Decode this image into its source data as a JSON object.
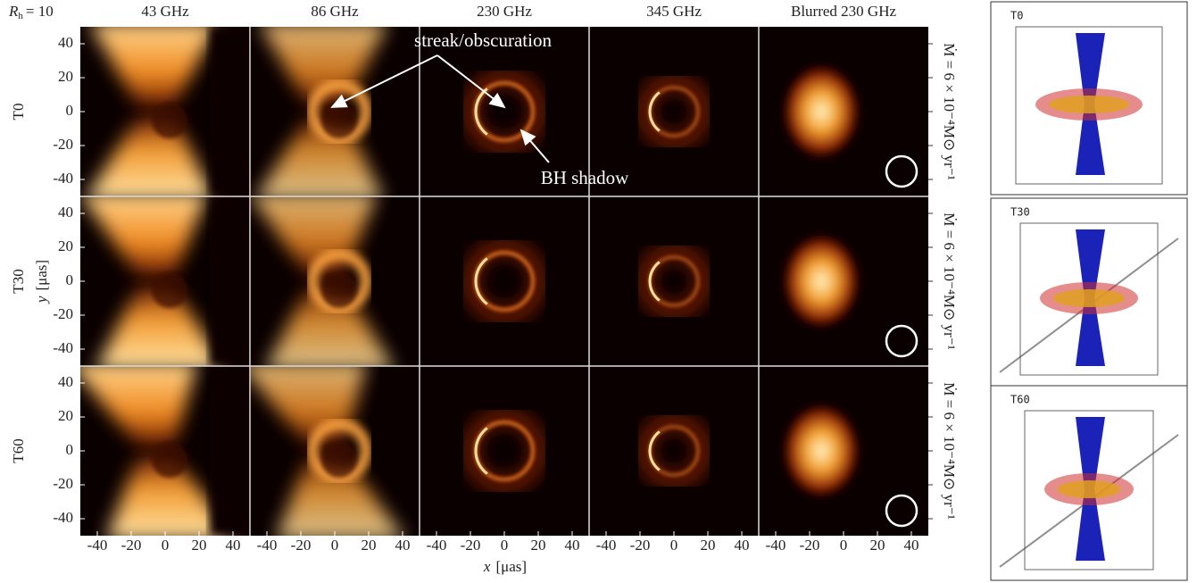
{
  "header": {
    "rh_symbol": "R",
    "rh_subscript": "h",
    "rh_value": "= 10"
  },
  "columns": [
    "43 GHz",
    "86 GHz",
    "230 GHz",
    "345 GHz",
    "Blurred 230 GHz"
  ],
  "rows": [
    "T0",
    "T30",
    "T60"
  ],
  "axes": {
    "xlabel": "x",
    "xunit": "[μas]",
    "ylabel": "y",
    "yunit": "[μas]",
    "xlim": [
      -50,
      50
    ],
    "ylim": [
      -50,
      50
    ],
    "xticks": [
      -40,
      -20,
      0,
      20,
      40
    ],
    "yticks": [
      40,
      20,
      0,
      -20,
      -40
    ]
  },
  "annotations": {
    "streak": "streak/obscuration",
    "shadow": "BH shadow"
  },
  "accretion_label": "Ṁ = 6 × 10⁻⁴M⊙ yr⁻¹",
  "renders": [
    {
      "label": "T0"
    },
    {
      "label": "T30"
    },
    {
      "label": "T60"
    }
  ]
}
